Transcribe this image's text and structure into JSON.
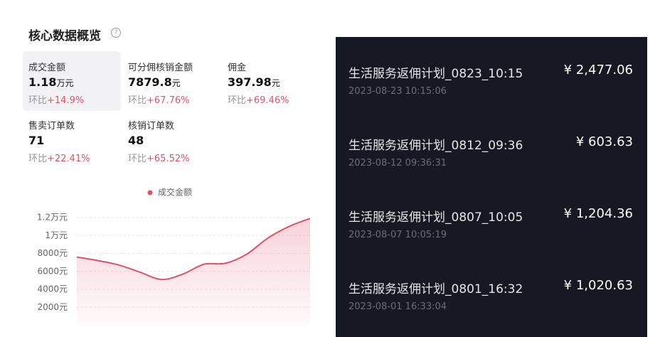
{
  "overview": {
    "title": "核心数据概览",
    "metrics": [
      {
        "label": "成交金额",
        "value": "1.18",
        "unit": "万元",
        "compare": "环比",
        "change": "+14.9%"
      },
      {
        "label": "可分佣核销金额",
        "value": "7879.8",
        "unit": "元",
        "compare": "环比",
        "change": "+67.76%"
      },
      {
        "label": "佣金",
        "value": "397.98",
        "unit": "元",
        "compare": "环比",
        "change": "+69.46%"
      },
      {
        "label": "售卖订单数",
        "value": "71",
        "compare": "环比",
        "change": "+22.41%"
      },
      {
        "label": "核销订单数",
        "value": "48",
        "compare": "环比",
        "change": "+65.52%"
      }
    ]
  },
  "chart_data": {
    "type": "area",
    "series": [
      {
        "name": "成交金额",
        "color": "#e0506b",
        "values": [
          7600,
          7200,
          6700,
          5900,
          5100,
          5700,
          6800,
          6900,
          7900,
          9700,
          11000,
          11900
        ]
      }
    ],
    "ylim": [
      0,
      12000
    ],
    "yticks": [
      {
        "value": 2000,
        "label": "2000元"
      },
      {
        "value": 4000,
        "label": "4000元"
      },
      {
        "value": 6000,
        "label": "6000元"
      },
      {
        "value": 8000,
        "label": "8000元"
      },
      {
        "value": 10000,
        "label": "1万元"
      },
      {
        "value": 12000,
        "label": "1.2万元"
      }
    ],
    "grid": true
  },
  "plans": [
    {
      "name": "生活服务返佣计划_0823_10:15",
      "time": "2023-08-23 10:15:06",
      "amount": "¥ 2,477.06"
    },
    {
      "name": "生活服务返佣计划_0812_09:36",
      "time": "2023-08-12 09:36:31",
      "amount": "¥ 603.63"
    },
    {
      "name": "生活服务返佣计划_0807_10:05",
      "time": "2023-08-07 10:05:19",
      "amount": "¥ 1,204.36"
    },
    {
      "name": "生活服务返佣计划_0801_16:32",
      "time": "2023-08-01 16:33:04",
      "amount": "¥ 1,020.63"
    }
  ]
}
